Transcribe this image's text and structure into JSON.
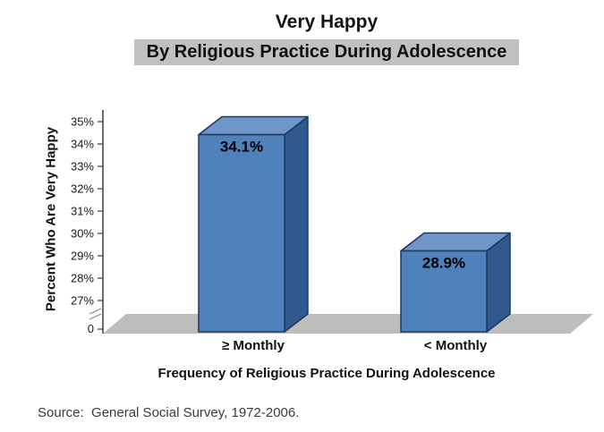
{
  "source": "Source:  General Social Survey, 1972-2006.",
  "chart_data": {
    "type": "bar",
    "style": "3d-column",
    "title": "Very Happy",
    "subtitle": "By Religious Practice During Adolescence",
    "xlabel": "Frequency of Religious Practice During Adolescence",
    "ylabel": "Percent Who Are Very Happy",
    "categories": [
      "≥ Monthly",
      "< Monthly"
    ],
    "values": [
      34.1,
      28.9
    ],
    "data_labels": [
      "34.1%",
      "28.9%"
    ],
    "y_ticks": [
      "35%",
      "34%",
      "33%",
      "32%",
      "31%",
      "30%",
      "29%",
      "28%",
      "27%"
    ],
    "y_origin_label": "0",
    "y_axis_break": true,
    "ylim": [
      27,
      35
    ],
    "grid": false,
    "legend": "none",
    "colors": {
      "bar_front": "#4f81bd",
      "bar_top": "#6e96c8",
      "bar_side": "#31598f",
      "bar_outline": "#1b3a61",
      "floor": "#bdbdbd",
      "axis": "#3c3c3c",
      "subtitle_bg": "#c0c0c0"
    }
  }
}
